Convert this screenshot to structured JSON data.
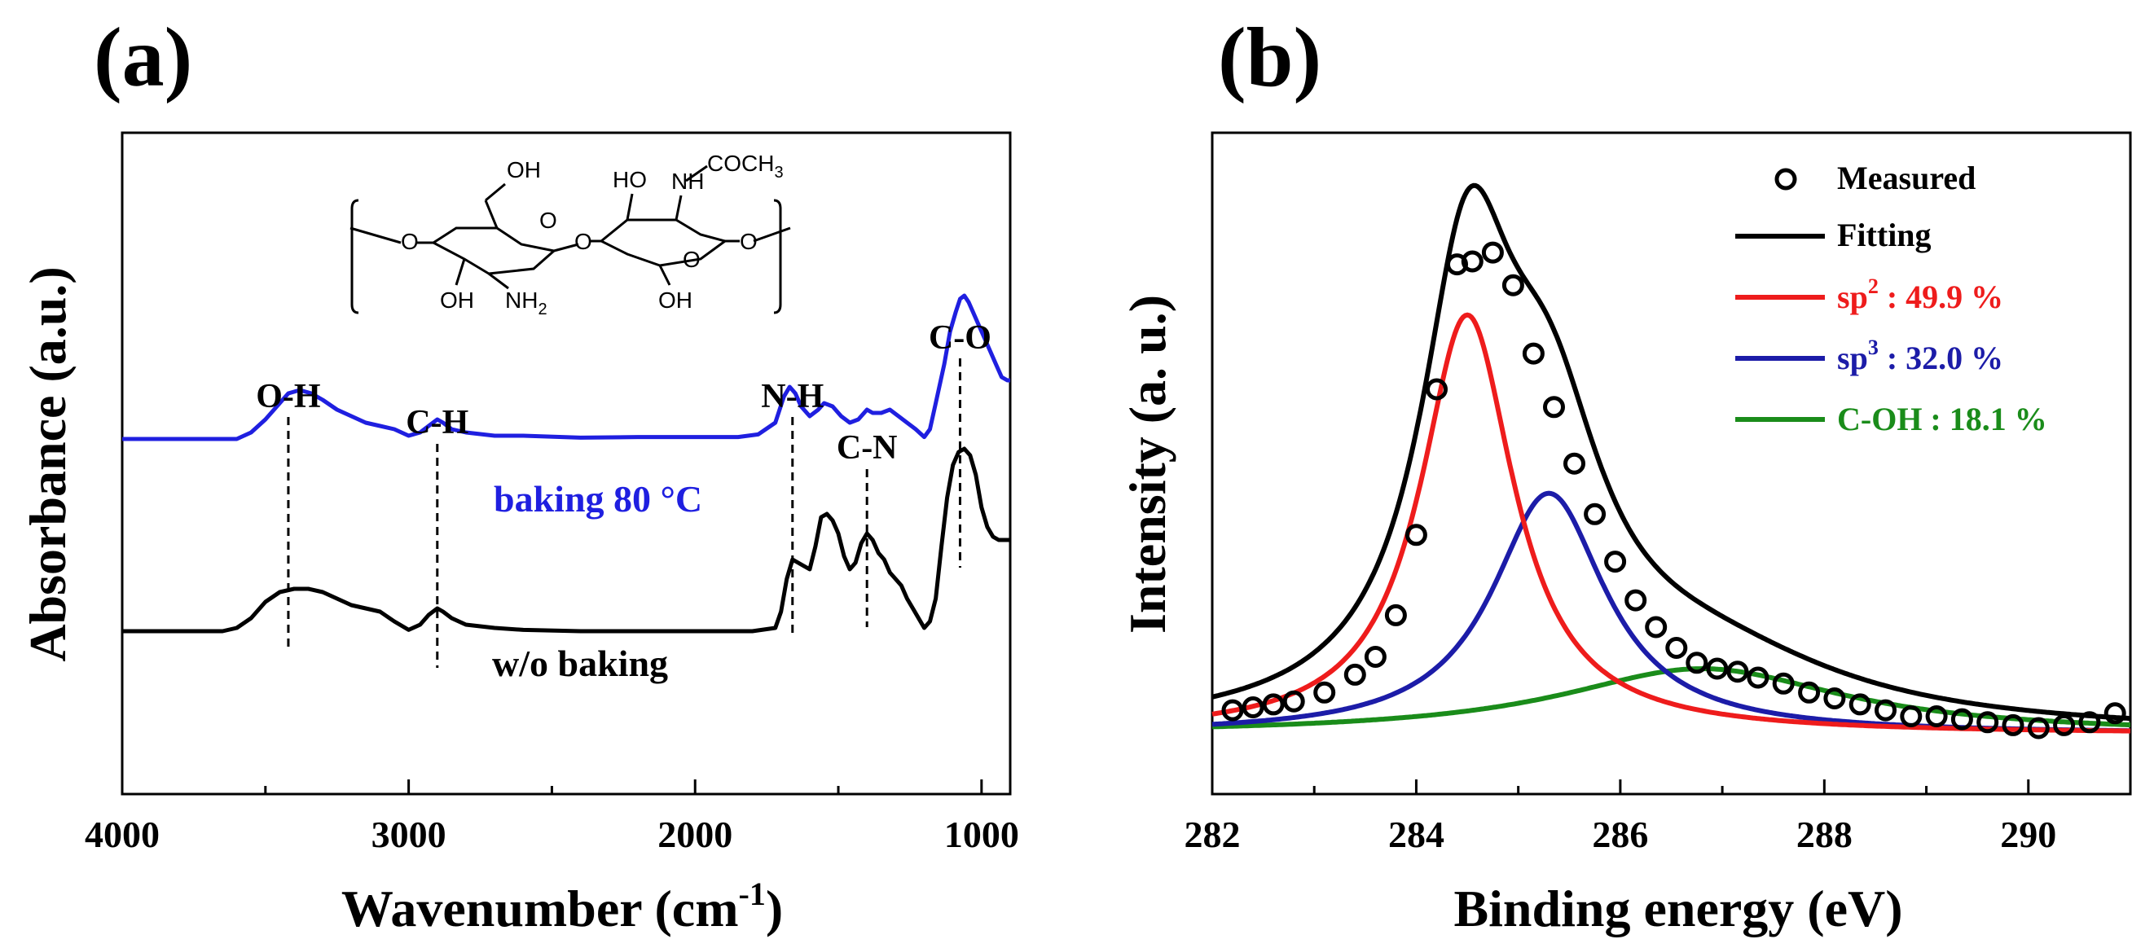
{
  "colors": {
    "black": "#000000",
    "blue": "#1f1fe0",
    "red": "#ee1c1c",
    "navy": "#1c1ca8",
    "green": "#1a8c1a"
  },
  "chart_data": [
    {
      "type": "line",
      "panel_label": "(a)",
      "title": "",
      "xlabel": "Wavenumber (cm",
      "xlabel_sup": "-1",
      "xlabel_end": ")",
      "ylabel": "Absorbance (a.u.)",
      "xlim": [
        4000,
        900
      ],
      "ylim": [
        0,
        100
      ],
      "x_ticks": [
        4000,
        3000,
        2000,
        1000
      ],
      "x_tick_labels": [
        "4000",
        "3000",
        "2000",
        "1000"
      ],
      "series": [
        {
          "name": "baking 80 °C",
          "color": "#1f1fe0",
          "x": [
            4000,
            3700,
            3600,
            3550,
            3500,
            3450,
            3420,
            3380,
            3340,
            3300,
            3250,
            3200,
            3150,
            3100,
            3050,
            3000,
            2960,
            2930,
            2900,
            2880,
            2850,
            2800,
            2700,
            2600,
            2400,
            2200,
            2000,
            1850,
            1780,
            1720,
            1690,
            1670,
            1650,
            1630,
            1600,
            1570,
            1550,
            1520,
            1490,
            1460,
            1430,
            1400,
            1380,
            1350,
            1320,
            1290,
            1260,
            1230,
            1200,
            1180,
            1160,
            1130,
            1110,
            1090,
            1075,
            1060,
            1045,
            1030,
            1010,
            990,
            970,
            950,
            930,
            910,
            900
          ],
          "y": [
            54.5,
            54.5,
            54.5,
            55.5,
            57.5,
            60,
            61.5,
            62,
            61.5,
            60.5,
            59,
            58,
            57,
            56.5,
            56,
            55,
            55.5,
            56.5,
            57.5,
            57,
            56,
            55.5,
            55,
            55,
            54.7,
            54.8,
            54.8,
            54.8,
            55.2,
            57,
            61,
            62.5,
            61.5,
            59.5,
            58,
            59,
            60,
            59.5,
            58,
            57,
            57.5,
            59,
            58.5,
            58.5,
            59,
            58,
            57,
            56,
            54.8,
            56,
            60,
            66,
            71,
            74,
            76,
            76.5,
            75.5,
            74,
            72,
            70,
            68,
            66,
            64,
            63.5,
            63.5
          ]
        },
        {
          "name": "w/o baking",
          "color": "#000000",
          "x": [
            4000,
            3700,
            3650,
            3600,
            3550,
            3500,
            3450,
            3400,
            3350,
            3300,
            3250,
            3200,
            3150,
            3100,
            3050,
            3000,
            2960,
            2930,
            2900,
            2880,
            2850,
            2800,
            2700,
            2600,
            2400,
            2200,
            2000,
            1800,
            1720,
            1700,
            1680,
            1660,
            1640,
            1620,
            1600,
            1580,
            1560,
            1540,
            1520,
            1500,
            1480,
            1460,
            1440,
            1420,
            1400,
            1380,
            1360,
            1340,
            1320,
            1300,
            1280,
            1260,
            1240,
            1220,
            1200,
            1180,
            1160,
            1140,
            1120,
            1100,
            1080,
            1060,
            1040,
            1020,
            1000,
            980,
            960,
            940,
            920,
            900
          ],
          "y": [
            25,
            25,
            25,
            25.5,
            27,
            29.5,
            31,
            31.5,
            31.5,
            31,
            30,
            29,
            28.5,
            28,
            26.5,
            25.2,
            26,
            27.5,
            28.5,
            28,
            27,
            26,
            25.5,
            25.2,
            25,
            25,
            25,
            25,
            25.5,
            28,
            33,
            36,
            35.5,
            35,
            34.5,
            38,
            42.5,
            43,
            42,
            40,
            36.5,
            34.5,
            35.5,
            38.5,
            40,
            39,
            37,
            36,
            34,
            33,
            32,
            30,
            28.5,
            27,
            25.5,
            26.5,
            30,
            38,
            45.5,
            50.5,
            52.5,
            53,
            52,
            49,
            44,
            41,
            39.5,
            39,
            39,
            39
          ]
        }
      ],
      "annotations": [
        {
          "text": "O-H",
          "x": 3420
        },
        {
          "text": "C-H",
          "x": 2900
        },
        {
          "text": "N-H",
          "x": 1660
        },
        {
          "text": "C-N",
          "x": 1400
        },
        {
          "text": "C-O",
          "x": 1075
        }
      ],
      "series_labels": [
        "baking 80 °C",
        "w/o baking"
      ],
      "structure": {
        "labels": [
          "OH",
          "HO",
          "NH",
          "COCH",
          "3",
          "O",
          "O",
          "O",
          "O",
          "O",
          "OH",
          "NH",
          "2",
          "OH"
        ]
      }
    },
    {
      "type": "line",
      "panel_label": "(b)",
      "title": "",
      "xlabel": "Binding energy (eV)",
      "ylabel": "Intensity (a. u.)",
      "xlim": [
        282,
        291
      ],
      "ylim": [
        0,
        100
      ],
      "x_ticks": [
        282,
        284,
        286,
        288,
        290
      ],
      "x_tick_labels": [
        "282",
        "284",
        "286",
        "288",
        "290"
      ],
      "legend_position": "top-right",
      "legend": [
        {
          "label": "Measured",
          "marker": "circle",
          "color": "#000000"
        },
        {
          "label": "Fitting",
          "marker": "line",
          "color": "#000000"
        },
        {
          "label": "sp",
          "sup": "2",
          "tail": " : 49.9 %",
          "marker": "line",
          "color": "#ee1c1c"
        },
        {
          "label": "sp",
          "sup": "3",
          "tail": " : 32.0 %",
          "marker": "line",
          "color": "#1c1ca8"
        },
        {
          "label": "C-OH : 18.1 %",
          "sup": "",
          "tail": "",
          "marker": "line",
          "color": "#1a8c1a"
        }
      ],
      "components": [
        {
          "name": "sp2",
          "center": 284.5,
          "amplitude": 70.5,
          "width": 0.56,
          "color": "#ee1c1c"
        },
        {
          "name": "sp3",
          "center": 285.3,
          "amplitude": 40.5,
          "width": 0.68,
          "color": "#1c1ca8"
        },
        {
          "name": "C-OH",
          "center": 286.8,
          "amplitude": 11,
          "width": 1.7,
          "color": "#1a8c1a"
        }
      ],
      "baseline": 0.5,
      "measured": {
        "x": [
          282.2,
          282.4,
          282.6,
          282.8,
          283.1,
          283.4,
          283.6,
          283.8,
          284.0,
          284.2,
          284.4,
          284.55,
          284.75,
          284.95,
          285.15,
          285.35,
          285.55,
          285.75,
          285.95,
          286.15,
          286.35,
          286.55,
          286.75,
          286.95,
          287.15,
          287.35,
          287.6,
          287.85,
          288.1,
          288.35,
          288.6,
          288.85,
          289.1,
          289.35,
          289.6,
          289.85,
          290.1,
          290.35,
          290.6,
          290.85
        ],
        "y": [
          4.5,
          5,
          5.5,
          6,
          7.5,
          10.5,
          13.5,
          20.5,
          34,
          58.5,
          79.5,
          80,
          81.5,
          76,
          64.5,
          55.5,
          46,
          37.5,
          29.5,
          23,
          18.5,
          15,
          12.5,
          11.5,
          11,
          10,
          9,
          7.5,
          6.5,
          5.5,
          4.5,
          3.5,
          3.5,
          3,
          2.5,
          2,
          1.5,
          2,
          2.5,
          4
        ]
      }
    }
  ]
}
